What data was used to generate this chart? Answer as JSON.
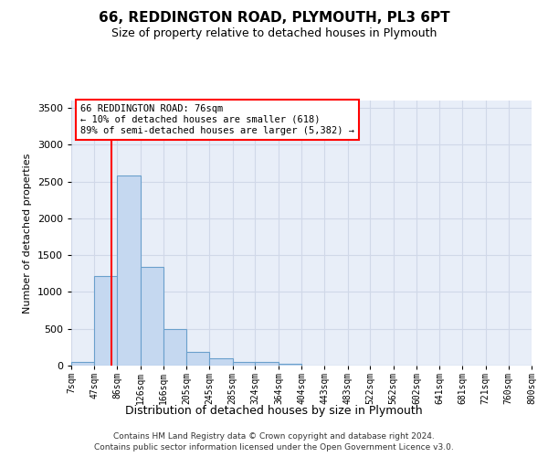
{
  "title": "66, REDDINGTON ROAD, PLYMOUTH, PL3 6PT",
  "subtitle": "Size of property relative to detached houses in Plymouth",
  "xlabel": "Distribution of detached houses by size in Plymouth",
  "ylabel": "Number of detached properties",
  "bar_color": "#c5d8f0",
  "bar_edge_color": "#6aa0cc",
  "background_color": "#e8eef8",
  "grid_color": "#d0d8e8",
  "bins": [
    7,
    47,
    86,
    126,
    166,
    205,
    245,
    285,
    324,
    364,
    404,
    443,
    483,
    522,
    562,
    602,
    641,
    681,
    721,
    760,
    800
  ],
  "bar_heights": [
    50,
    1220,
    2580,
    1340,
    500,
    190,
    100,
    50,
    50,
    30,
    5,
    2,
    2,
    1,
    1,
    0,
    0,
    0,
    0,
    0
  ],
  "red_line_x": 76,
  "annotation_title": "66 REDDINGTON ROAD: 76sqm",
  "annotation_line1": "← 10% of detached houses are smaller (618)",
  "annotation_line2": "89% of semi-detached houses are larger (5,382) →",
  "ylim": [
    0,
    3600
  ],
  "yticks": [
    0,
    500,
    1000,
    1500,
    2000,
    2500,
    3000,
    3500
  ],
  "footer1": "Contains HM Land Registry data © Crown copyright and database right 2024.",
  "footer2": "Contains public sector information licensed under the Open Government Licence v3.0."
}
